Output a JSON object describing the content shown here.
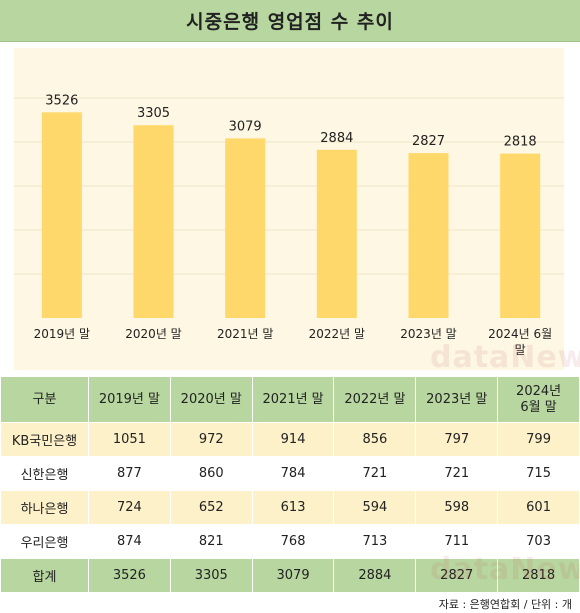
{
  "title": "시중은행 영업점 수 추이",
  "watermark": "dataNews",
  "chart_data": {
    "type": "bar",
    "categories": [
      "2019년 말",
      "2020년 말",
      "2021년 말",
      "2022년 말",
      "2023년 말",
      "2024년 6월 말"
    ],
    "values": [
      3526,
      3305,
      3079,
      2884,
      2827,
      2818
    ],
    "ylim": [
      0,
      4000
    ],
    "grid": true,
    "bar_color": "#ffd86b"
  },
  "table": {
    "headers": [
      "구분",
      "2019년 말",
      "2020년 말",
      "2021년 말",
      "2022년 말",
      "2023년 말",
      "2024년 6월 말"
    ],
    "rows": [
      {
        "label": "KB국민은행",
        "values": [
          "1051",
          "972",
          "914",
          "856",
          "797",
          "799"
        ]
      },
      {
        "label": "신한은행",
        "values": [
          "877",
          "860",
          "784",
          "721",
          "721",
          "715"
        ]
      },
      {
        "label": "하나은행",
        "values": [
          "724",
          "652",
          "613",
          "594",
          "598",
          "601"
        ]
      },
      {
        "label": "우리은행",
        "values": [
          "874",
          "821",
          "768",
          "713",
          "711",
          "703"
        ]
      },
      {
        "label": "합계",
        "values": [
          "3526",
          "3305",
          "3079",
          "2884",
          "2827",
          "2818"
        ]
      }
    ]
  },
  "source": "자료 : 은행연합회 / 단위 : 개",
  "colors": {
    "header_green": "#b8d7a0",
    "row_cream": "#fdf1c9",
    "panel_bg": "#fdf7e3",
    "bar": "#ffd86b"
  }
}
